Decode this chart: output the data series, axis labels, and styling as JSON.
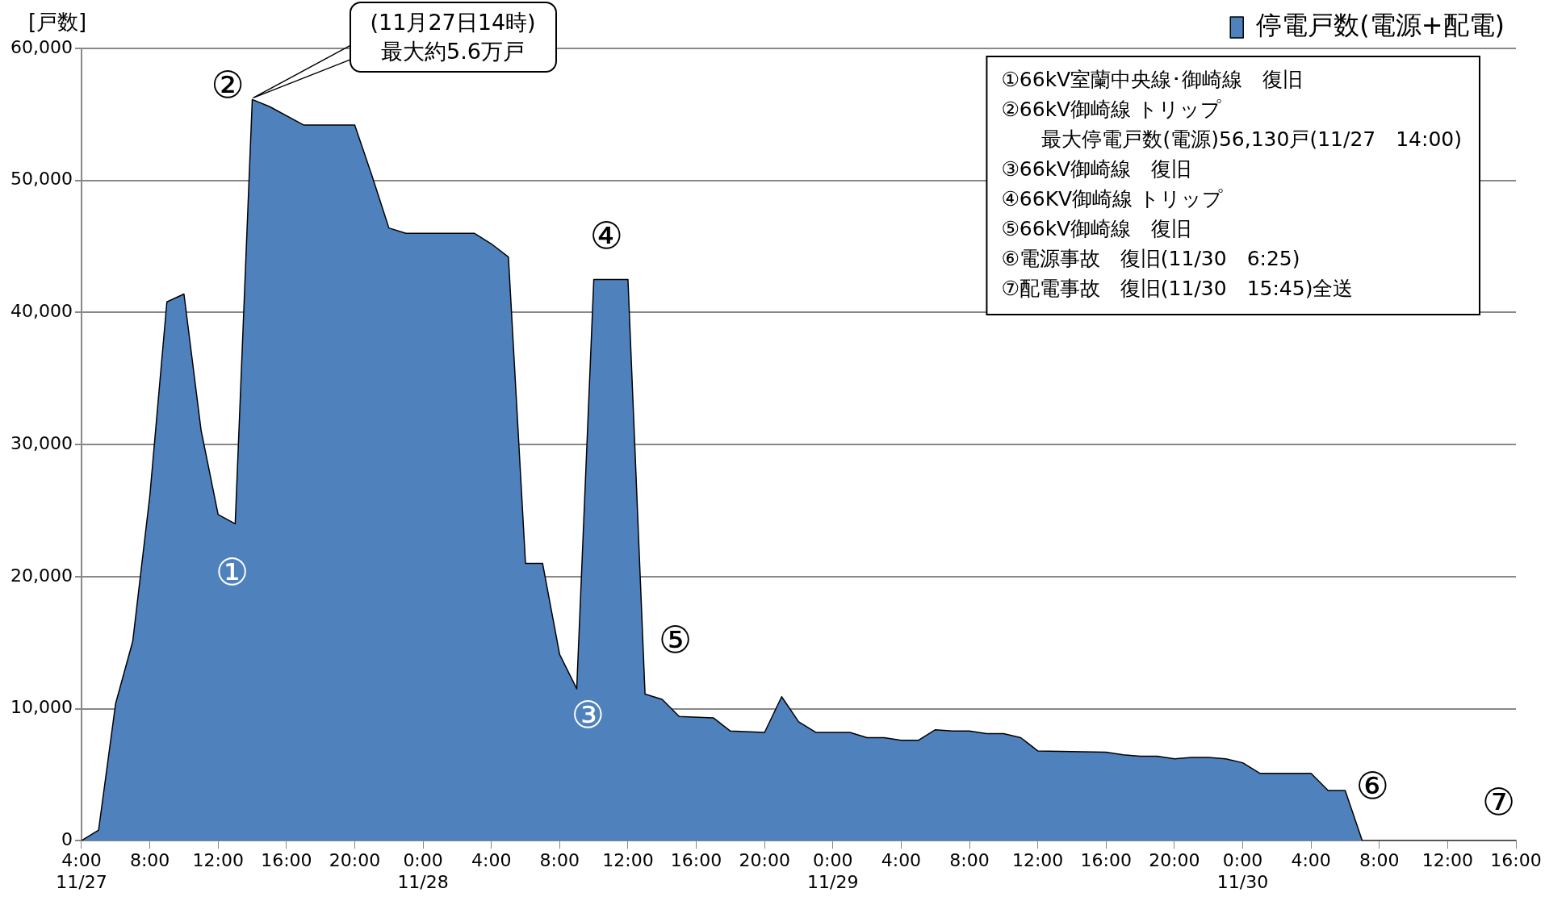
{
  "chart_data": {
    "type": "area",
    "ylabel": "[戸数]",
    "legend": "top right",
    "grid": "y",
    "marker": "none",
    "x": [
      "--11-27T04:00",
      "--11-27T05:00",
      "--11-27T06:00",
      "--11-27T07:00",
      "--11-27T08:00",
      "--11-27T09:00",
      "--11-27T10:00",
      "--11-27T11:00",
      "--11-27T12:00",
      "--11-27T13:00",
      "--11-27T14:00",
      "--11-27T15:00",
      "--11-27T17:00",
      "--11-27T20:00",
      "--11-27T21:00",
      "--11-27T22:00",
      "--11-27T23:00",
      "--11-28T03:00",
      "--11-28T04:00",
      "--11-28T05:00",
      "--11-28T06:00",
      "--11-28T07:00",
      "--11-28T08:00",
      "--11-28T09:00",
      "--11-28T10:00",
      "--11-28T12:00",
      "--11-28T13:00",
      "--11-28T14:00",
      "--11-28T15:00",
      "--11-28T17:00",
      "--11-28T18:00",
      "--11-28T20:00",
      "--11-28T21:00",
      "--11-28T22:00",
      "--11-28T23:00",
      "--11-29T01:00",
      "--11-29T02:00",
      "--11-29T03:00",
      "--11-29T04:00",
      "--11-29T05:00",
      "--11-29T06:00",
      "--11-29T07:00",
      "--11-29T08:00",
      "--11-29T09:00",
      "--11-29T10:00",
      "--11-29T11:00",
      "--11-29T12:00",
      "--11-29T16:00",
      "--11-29T17:00",
      "--11-29T18:00",
      "--11-29T19:00",
      "--11-29T20:00",
      "--11-29T21:00",
      "--11-29T22:00",
      "--11-29T23:00",
      "--11-30T00:00",
      "--11-30T01:00",
      "--11-30T04:00",
      "--11-30T05:00",
      "--11-30T06:00",
      "--11-30T07:00",
      "--11-30T16:00"
    ],
    "series": [
      {
        "name": "停電戸数(電源+配電)",
        "color": "#4f81bd",
        "values": [
          0,
          800,
          10400,
          15100,
          26100,
          40800,
          41400,
          31100,
          24700,
          24000,
          56130,
          55600,
          54200,
          54200,
          50400,
          46400,
          46000,
          46000,
          45200,
          44200,
          21000,
          21000,
          14100,
          11500,
          42500,
          42500,
          11100,
          10700,
          9400,
          9300,
          8300,
          8200,
          10900,
          9000,
          8200,
          8200,
          7800,
          7800,
          7600,
          7600,
          8400,
          8300,
          8300,
          8100,
          8100,
          7800,
          6800,
          6700,
          6500,
          6400,
          6400,
          6200,
          6300,
          6300,
          6200,
          5900,
          5100,
          5100,
          3800,
          3800,
          0,
          0
        ]
      }
    ],
    "xlim": [
      "--11-27T04:00",
      "--11-30T16:00"
    ],
    "xticks": [
      {
        "value": "--11-27T04:00",
        "label": "4:00\n11/27"
      },
      {
        "value": "--11-27T08:00",
        "label": "8:00"
      },
      {
        "value": "--11-27T12:00",
        "label": "12:00"
      },
      {
        "value": "--11-27T16:00",
        "label": "16:00"
      },
      {
        "value": "--11-27T20:00",
        "label": "20:00"
      },
      {
        "value": "--11-28T00:00",
        "label": "0:00\n11/28"
      },
      {
        "value": "--11-28T04:00",
        "label": "4:00"
      },
      {
        "value": "--11-28T08:00",
        "label": "8:00"
      },
      {
        "value": "--11-28T12:00",
        "label": "12:00"
      },
      {
        "value": "--11-28T16:00",
        "label": "16:00"
      },
      {
        "value": "--11-28T20:00",
        "label": "20:00"
      },
      {
        "value": "--11-29T00:00",
        "label": "0:00\n11/29"
      },
      {
        "value": "--11-29T04:00",
        "label": "4:00"
      },
      {
        "value": "--11-29T08:00",
        "label": "8:00"
      },
      {
        "value": "--11-29T12:00",
        "label": "12:00"
      },
      {
        "value": "--11-29T16:00",
        "label": "16:00"
      },
      {
        "value": "--11-29T20:00",
        "label": "20:00"
      },
      {
        "value": "--11-30T00:00",
        "label": "0:00\n11/30"
      },
      {
        "value": "--11-30T04:00",
        "label": "4:00"
      },
      {
        "value": "--11-30T08:00",
        "label": "8:00"
      },
      {
        "value": "--11-30T12:00",
        "label": "12:00"
      },
      {
        "value": "--11-30T16:00",
        "label": "16:00"
      }
    ],
    "ylim": [
      0,
      60000
    ],
    "yticks": [
      {
        "value": 0,
        "label": "0"
      },
      {
        "value": 10000,
        "label": "10,000"
      },
      {
        "value": 20000,
        "label": "20,000"
      },
      {
        "value": 30000,
        "label": "30,000"
      },
      {
        "value": 40000,
        "label": "40,000"
      },
      {
        "value": 50000,
        "label": "50,000"
      },
      {
        "value": 60000,
        "label": "60,000"
      }
    ],
    "annotations": [
      "(11月27日14時)\n最大約5.6万戸",
      "①",
      "②",
      "③",
      "④",
      "⑤",
      "⑥",
      "⑦",
      "①66kV室蘭中央線･御崎線　復旧",
      "②66kV御崎線 トリップ",
      "　　最大停電戸数(電源)56,130戸(11/27　14:00)",
      "③66kV御崎線　復旧",
      "④66KV御崎線 トリップ",
      "⑤66kV御崎線　復旧",
      "⑥電源事故　復旧(11/30　6:25)",
      "⑦配電事故　復旧(11/30　15:45)全送"
    ]
  }
}
